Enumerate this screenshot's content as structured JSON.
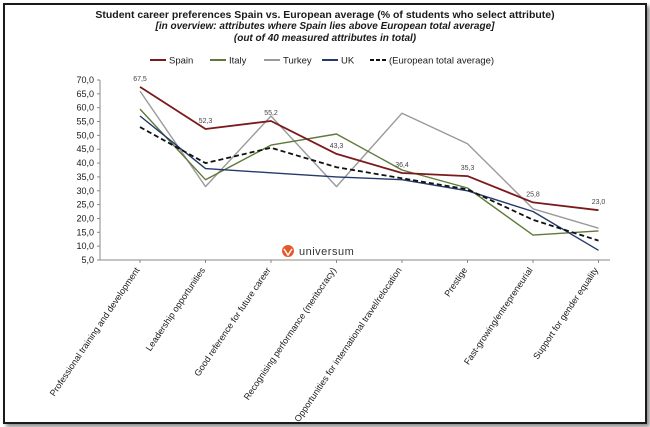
{
  "chart_data": {
    "type": "line",
    "title": "Student career preferences Spain vs. European average (% of students who select attribute)",
    "subtitle_lines": [
      "[in overview: attributes where Spain lies above European total average]",
      "(out of 40 measured attributes in total)"
    ],
    "categories": [
      "Professional training and development",
      "Leadership opportunities",
      "Good reference for future career",
      "Recognising performance (meritocracy)",
      "Opportunities for international travel/relocation",
      "Prestige",
      "Fast-growing/entrepreneurial",
      "Support for gender equality"
    ],
    "ylim": [
      5,
      70
    ],
    "yticks": [
      "5,0",
      "10,0",
      "15,0",
      "20,0",
      "25,0",
      "30,0",
      "35,0",
      "40,0",
      "45,0",
      "50,0",
      "55,0",
      "60,0",
      "65,0",
      "70,0"
    ],
    "series": [
      {
        "name": "Spain",
        "color": "#7b1a1d",
        "dash": false,
        "values": [
          67.5,
          52.3,
          55.2,
          43.3,
          36.4,
          35.3,
          25.8,
          23.0
        ],
        "labels": [
          "67,5",
          "52,3",
          "55,2",
          "43,3",
          "36,4",
          "35,3",
          "25,8",
          "23,0"
        ]
      },
      {
        "name": "Italy",
        "color": "#5e7a3a",
        "dash": false,
        "values": [
          59.5,
          34.0,
          46.5,
          50.5,
          37.5,
          31.0,
          14.0,
          15.5
        ]
      },
      {
        "name": "Turkey",
        "color": "#9a9a9a",
        "dash": false,
        "values": [
          66.0,
          31.5,
          57.0,
          31.5,
          58.0,
          47.0,
          23.5,
          16.5
        ]
      },
      {
        "name": "UK",
        "color": "#243a6b",
        "dash": false,
        "values": [
          57.0,
          38.0,
          36.5,
          35.0,
          34.0,
          30.0,
          22.5,
          8.5
        ]
      },
      {
        "name": "(European total average)",
        "color": "#111111",
        "dash": true,
        "values": [
          53.0,
          40.0,
          45.5,
          38.5,
          34.5,
          30.5,
          19.5,
          12.0
        ]
      }
    ],
    "grid": false,
    "legend_position": "top"
  },
  "logo_text": "universum"
}
